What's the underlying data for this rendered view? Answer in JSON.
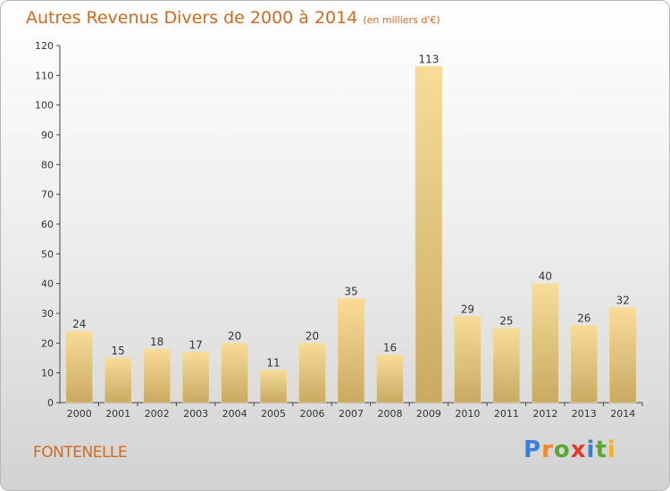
{
  "header": {
    "title": "Autres Revenus Divers de 2000 à 2014",
    "unit": "(en milliers d'€)"
  },
  "footer": {
    "town": "FONTENELLE",
    "logo": "Proxiti"
  },
  "colors": {
    "accent": "#d2691e",
    "bar_light": "#f8dc98",
    "bar_dark": "#c8aa62"
  },
  "chart_data": {
    "type": "bar",
    "categories": [
      "2000",
      "2001",
      "2002",
      "2003",
      "2004",
      "2005",
      "2006",
      "2007",
      "2008",
      "2009",
      "2010",
      "2011",
      "2012",
      "2013",
      "2014"
    ],
    "values": [
      24,
      15,
      18,
      17,
      20,
      11,
      20,
      35,
      16,
      113,
      29,
      25,
      40,
      26,
      32
    ],
    "ylim": [
      0,
      120
    ],
    "yticks": [
      0,
      10,
      20,
      30,
      40,
      50,
      60,
      70,
      80,
      90,
      100,
      110,
      120
    ],
    "grid": false,
    "legend": "none"
  }
}
